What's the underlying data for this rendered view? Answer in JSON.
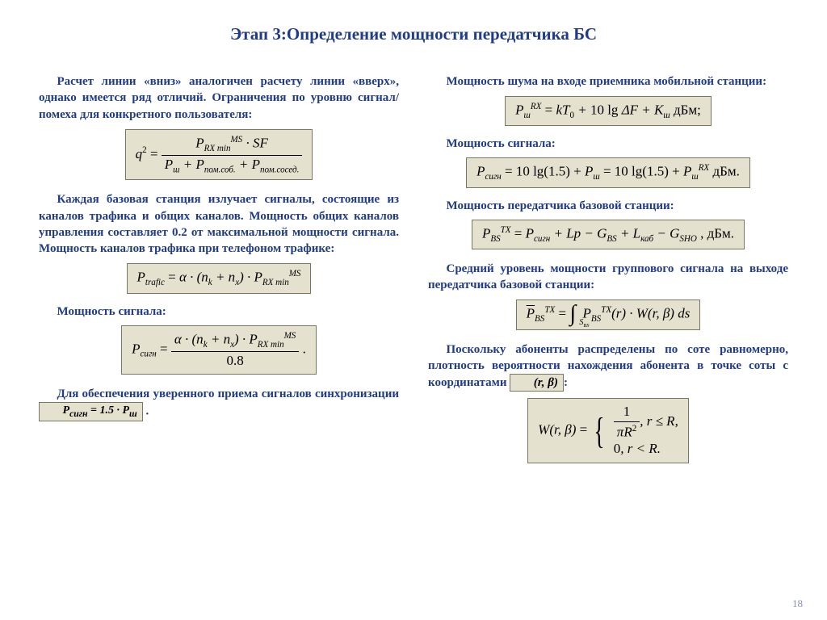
{
  "title": "Этап 3:Определение мощности передатчика БС",
  "left": {
    "p1": "Расчет линии «вниз» аналогичен расчету линии «вверх», однако имеется ряд отличий. Ограничения по уровню сигнал/помеха для конкретного пользователя:",
    "p2": "Каждая базовая станция излучает сигналы, состоящие из каналов трафика и общих каналов. Мощность общих каналов управления составляет 0.2 от максимальной мощности сигнала. Мощность каналов трафика при телефоном трафике:",
    "l3": "Мощность сигнала:",
    "p4a": "Для обеспечения уверенного приема сигналов синхронизации ",
    "p4b": " ."
  },
  "right": {
    "l1": "Мощность шума на входе приемника мобильной станции:",
    "l2": "Мощность сигнала:",
    "l3": "Мощность передатчика базовой станции:",
    "l4": "Средний уровень мощности группового сигнала на выходе передатчика базовой станции:",
    "p5": "Поскольку абоненты распределены по соте равномерно, плотность вероятности нахождения абонента в точке соты с координатами ",
    "p5b": ":"
  },
  "page_number": "18",
  "colors": {
    "text": "#1f3b8a",
    "formula_bg": "#e5e1cf",
    "formula_border": "#7a7760"
  }
}
